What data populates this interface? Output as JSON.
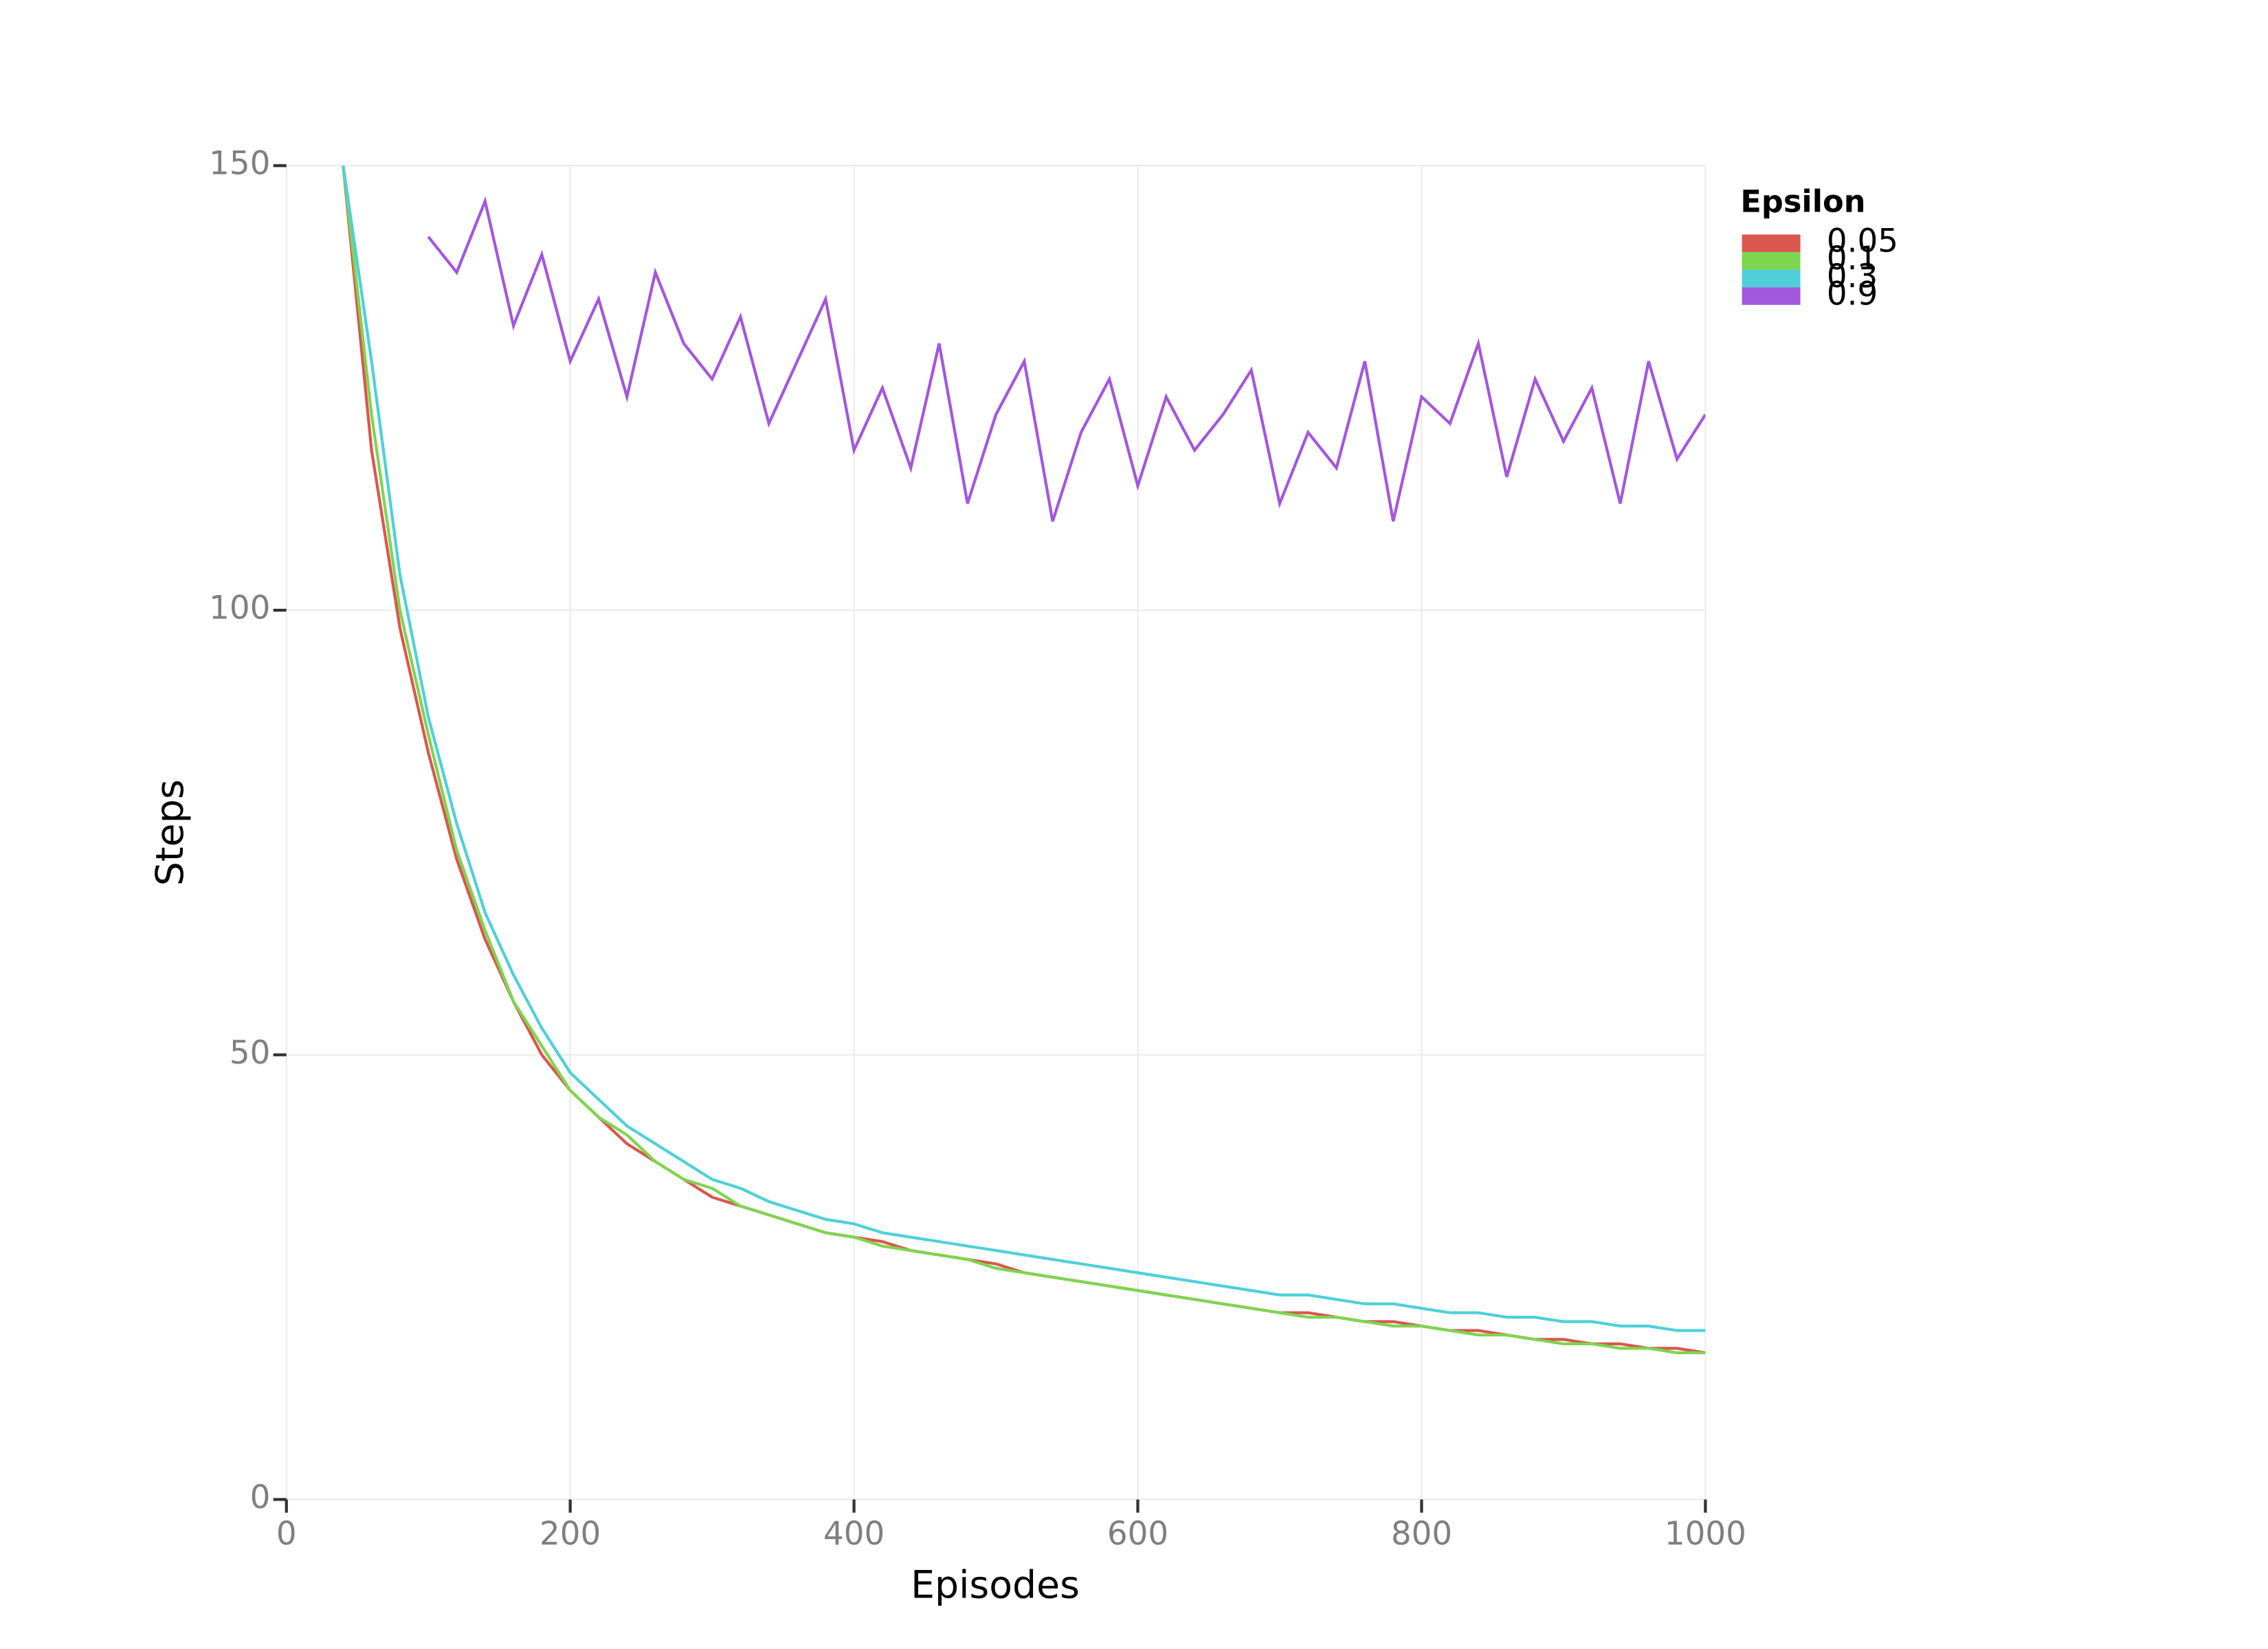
{
  "chart_data": {
    "type": "line",
    "x_label": "Episodes",
    "y_label": "Steps",
    "legend_title": "Epsilon",
    "legend_position": "right",
    "grid": true,
    "xlim": [
      0,
      1000
    ],
    "xticks": [
      0,
      200,
      400,
      600,
      800,
      1000
    ],
    "ylim": [
      0,
      150
    ],
    "yticks": [
      0,
      50,
      100,
      150
    ],
    "x": [
      40,
      60,
      80,
      100,
      120,
      140,
      160,
      180,
      200,
      220,
      240,
      260,
      280,
      300,
      320,
      340,
      360,
      380,
      400,
      420,
      440,
      460,
      480,
      500,
      520,
      540,
      560,
      580,
      600,
      620,
      640,
      660,
      680,
      700,
      720,
      740,
      760,
      780,
      800,
      820,
      840,
      860,
      880,
      900,
      920,
      940,
      960,
      980,
      1000
    ],
    "series": [
      {
        "name": "0.05",
        "color": "#d9574e",
        "values": [
          150,
          118,
          98,
          84,
          72,
          63,
          56,
          50,
          46,
          43,
          40,
          38,
          36,
          34,
          33,
          32,
          31,
          30,
          29.5,
          29,
          28,
          27.5,
          27,
          26.5,
          25.5,
          25,
          24.5,
          24,
          23.5,
          23,
          22.5,
          22,
          21.5,
          21,
          21,
          20.5,
          20,
          20,
          19.5,
          19,
          19,
          18.5,
          18,
          18,
          17.5,
          17.5,
          17,
          17,
          16.5
        ]
      },
      {
        "name": "0.1",
        "color": "#7ed550",
        "values": [
          150,
          122,
          100,
          86,
          73,
          64,
          56,
          51,
          46,
          43,
          41,
          38,
          36,
          35,
          33,
          32,
          31,
          30,
          29.5,
          28.5,
          28,
          27.5,
          27,
          26,
          25.5,
          25,
          24.5,
          24,
          23.5,
          23,
          22.5,
          22,
          21.5,
          21,
          20.5,
          20.5,
          20,
          19.5,
          19.5,
          19,
          18.5,
          18.5,
          18,
          17.5,
          17.5,
          17,
          17,
          16.5,
          16.5
        ]
      },
      {
        "name": "0.3",
        "color": "#4fd0d8",
        "values": [
          150,
          128,
          104,
          88,
          76,
          66,
          59,
          53,
          48,
          45,
          42,
          40,
          38,
          36,
          35,
          33.5,
          32.5,
          31.5,
          31,
          30,
          29.5,
          29,
          28.5,
          28,
          27.5,
          27,
          26.5,
          26,
          25.5,
          25,
          24.5,
          24,
          23.5,
          23,
          23,
          22.5,
          22,
          22,
          21.5,
          21,
          21,
          20.5,
          20.5,
          20,
          20,
          19.5,
          19.5,
          19,
          19
        ]
      },
      {
        "name": "0.9",
        "color": "#a357dd",
        "values": [
          null,
          null,
          null,
          142,
          138,
          146,
          132,
          140,
          128,
          135,
          124,
          138,
          130,
          126,
          133,
          121,
          128,
          135,
          118,
          125,
          116,
          130,
          112,
          122,
          128,
          110,
          120,
          126,
          114,
          124,
          118,
          122,
          127,
          112,
          120,
          116,
          128,
          110,
          124,
          121,
          130,
          115,
          126,
          119,
          125,
          112,
          128,
          117,
          122
        ]
      }
    ]
  }
}
